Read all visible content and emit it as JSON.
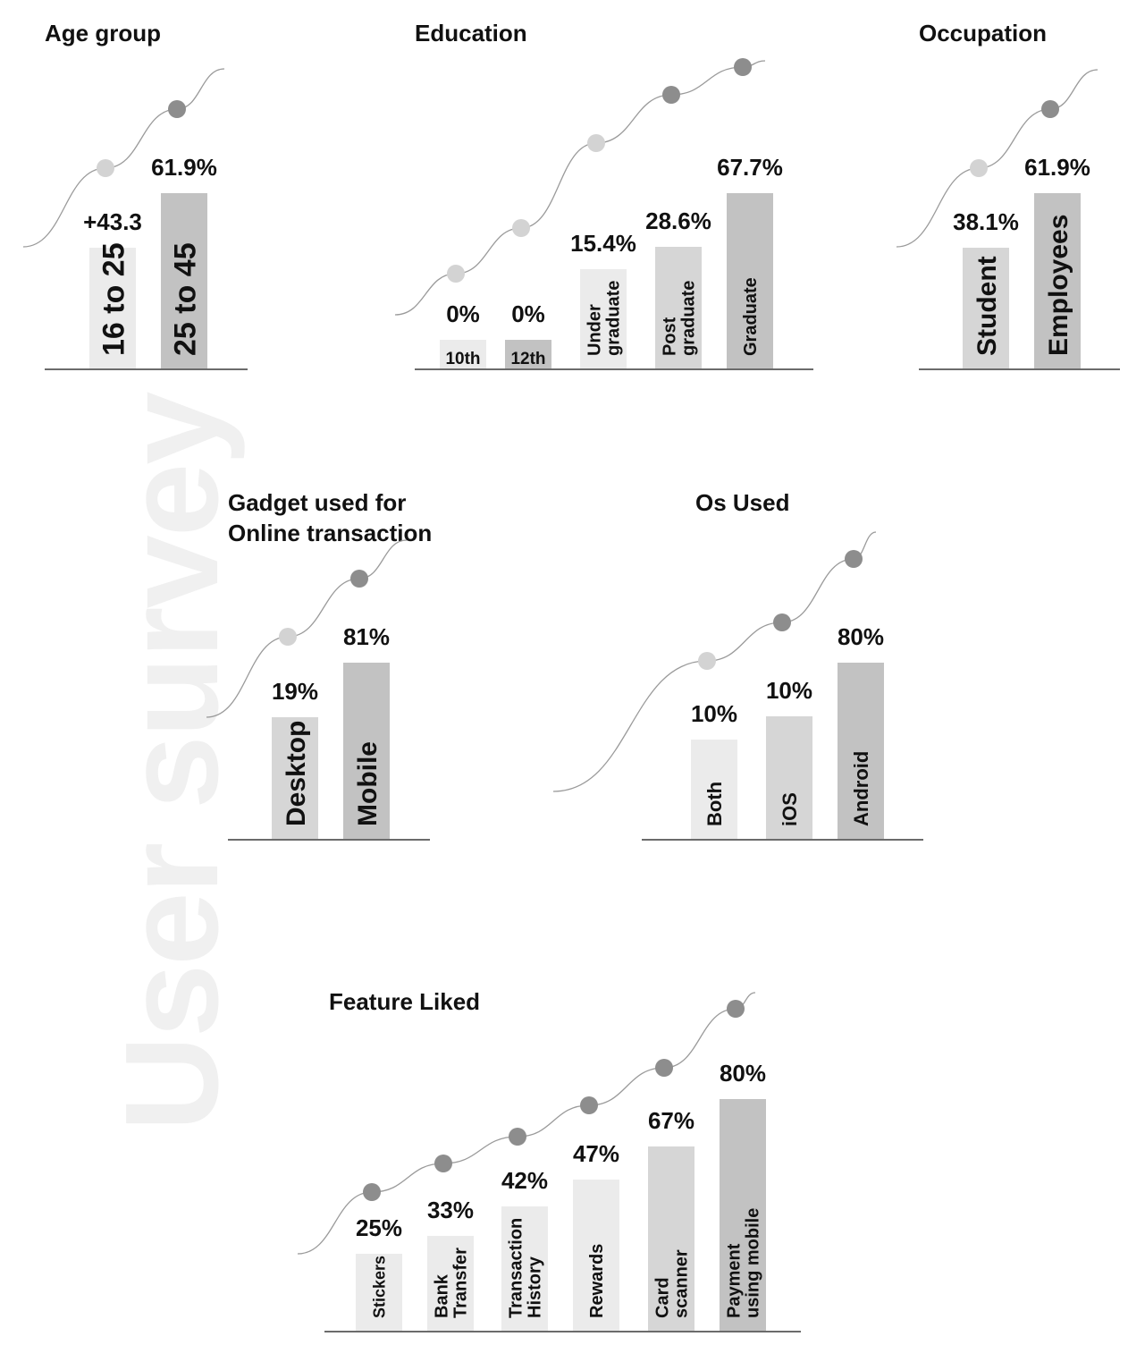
{
  "page": {
    "watermark": "User survey"
  },
  "colors": {
    "light": "#ebebeb",
    "mid": "#d6d6d6",
    "dark": "#c2c2c2",
    "dot_light": "#d3d3d3",
    "dot_dark": "#8d8d8d",
    "axis": "#6b6b6b",
    "curve": "#9a9a9a"
  },
  "chart_data": [
    {
      "id": "age",
      "type": "bar",
      "title": "Age group",
      "categories": [
        "16 to 25",
        "25 to 45"
      ],
      "values": [
        43.3,
        61.9
      ],
      "value_labels": [
        "+43.3",
        "61.9%"
      ],
      "fills": [
        "light",
        "dark"
      ],
      "dots": [
        "light",
        "dark"
      ]
    },
    {
      "id": "education",
      "type": "bar",
      "title": "Education",
      "categories": [
        "10th",
        "12th",
        "Under graduate",
        "Post graduate",
        "Graduate"
      ],
      "values": [
        0,
        0,
        15.4,
        28.6,
        67.7
      ],
      "value_labels": [
        "0%",
        "0%",
        "15.4%",
        "28.6%",
        "67.7%"
      ],
      "fills": [
        "light",
        "dark",
        "light",
        "mid",
        "dark"
      ],
      "dots": [
        "light",
        "light",
        "light",
        "dark",
        "dark"
      ]
    },
    {
      "id": "occupation",
      "type": "bar",
      "title": "Occupation",
      "categories": [
        "Student",
        "Employees"
      ],
      "values": [
        38.1,
        61.9
      ],
      "value_labels": [
        "38.1%",
        "61.9%"
      ],
      "fills": [
        "mid",
        "dark"
      ],
      "dots": [
        "light",
        "dark"
      ]
    },
    {
      "id": "gadget",
      "type": "bar",
      "title": "Gadget used for Online transaction",
      "title_lines": [
        "Gadget used for",
        "Online transaction"
      ],
      "categories": [
        "Desktop",
        "Mobile"
      ],
      "values": [
        19,
        81
      ],
      "value_labels": [
        "19%",
        "81%"
      ],
      "fills": [
        "mid",
        "dark"
      ],
      "dots": [
        "light",
        "dark"
      ]
    },
    {
      "id": "os",
      "type": "bar",
      "title": "Os Used",
      "categories": [
        "Both",
        "iOS",
        "Android"
      ],
      "values": [
        10,
        10,
        80
      ],
      "value_labels": [
        "10%",
        "10%",
        "80%"
      ],
      "fills": [
        "light",
        "mid",
        "dark"
      ],
      "dots": [
        "light",
        "dark",
        "dark"
      ]
    },
    {
      "id": "features",
      "type": "bar",
      "title": "Feature Liked",
      "categories": [
        "Stickers",
        "Bank Transfer",
        "Transaction History",
        "Rewards",
        "Card scanner",
        "Payment using mobile"
      ],
      "values": [
        25,
        33,
        42,
        47,
        67,
        80
      ],
      "value_labels": [
        "25%",
        "33%",
        "42%",
        "47%",
        "67%",
        "80%"
      ],
      "fills": [
        "light",
        "light",
        "light",
        "light",
        "mid",
        "dark"
      ],
      "dots": [
        "dark",
        "dark",
        "dark",
        "dark",
        "dark",
        "dark"
      ]
    }
  ]
}
